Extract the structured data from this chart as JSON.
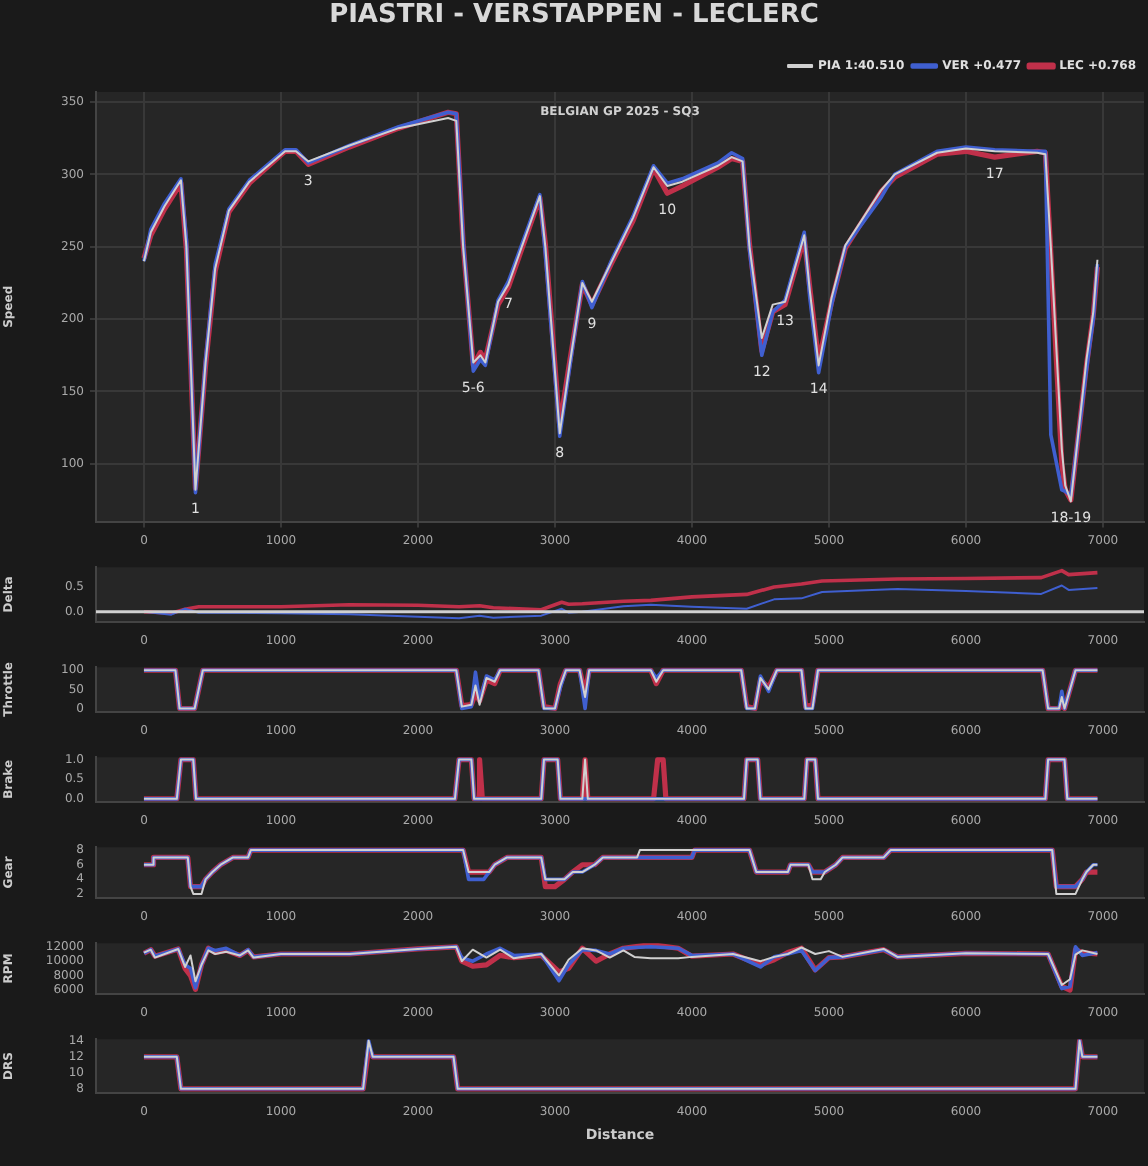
{
  "chart_data": [
    {
      "type": "line",
      "title": "PIASTRI - VERSTAPPEN - LECLERC",
      "subtitle": "BELGIAN GP 2025 - SQ3",
      "ylabel": "Speed",
      "legend": "top right",
      "grid": true,
      "xlim": [
        -350,
        7300
      ],
      "xticks": [
        0,
        1000,
        2000,
        3000,
        4000,
        5000,
        6000,
        7000
      ],
      "ylim": [
        60,
        357
      ],
      "yticks": [
        100,
        150,
        200,
        250,
        300,
        350
      ],
      "x": [
        0,
        50,
        150,
        270,
        310,
        376,
        450,
        520,
        620,
        770,
        1030,
        1110,
        1200,
        1500,
        1860,
        2220,
        2280,
        2330,
        2404,
        2456,
        2492,
        2585,
        2660,
        2890,
        2930,
        3035,
        3110,
        3200,
        3270,
        3410,
        3570,
        3720,
        3820,
        3930,
        4190,
        4290,
        4370,
        4420,
        4510,
        4590,
        4680,
        4820,
        4860,
        4925,
        5020,
        5120,
        5380,
        5480,
        5790,
        6000,
        6210,
        6520,
        6580,
        6620,
        6700,
        6725,
        6766,
        6880,
        6930,
        6960
      ],
      "series": [
        {
          "name": "PIA 1:40.510",
          "color": "#d0d0d0",
          "values": [
            240,
            260,
            278,
            296,
            250,
            82,
            170,
            235,
            275,
            295,
            316,
            316,
            309,
            320,
            332,
            339,
            337,
            250,
            170,
            175,
            170,
            212,
            224,
            285,
            250,
            121,
            170,
            225,
            212,
            239,
            270,
            305,
            292,
            295,
            306,
            312,
            309,
            250,
            187,
            210,
            212,
            258,
            220,
            168,
            215,
            251,
            289,
            300,
            315,
            318,
            316,
            315,
            314,
            250,
            110,
            85,
            74,
            172,
            205,
            241
          ]
        },
        {
          "name": "VER +0.477",
          "color": "#3f5fd0",
          "values": [
            240,
            262,
            280,
            297,
            255,
            80,
            172,
            238,
            276,
            296,
            317,
            317,
            308,
            320,
            333,
            343,
            342,
            255,
            164,
            172,
            168,
            213,
            226,
            286,
            245,
            119,
            168,
            226,
            208,
            240,
            271,
            306,
            294,
            297,
            308,
            315,
            311,
            248,
            175,
            205,
            213,
            260,
            215,
            163,
            210,
            250,
            284,
            300,
            316,
            319,
            317,
            316,
            316,
            120,
            82,
            81,
            78,
            165,
            200,
            238
          ]
        },
        {
          "name": "LEC +0.768",
          "color": "#c0304a",
          "values": [
            242,
            258,
            276,
            294,
            248,
            83,
            168,
            233,
            274,
            294,
            316,
            316,
            307,
            319,
            332,
            343,
            342,
            252,
            168,
            177,
            172,
            210,
            222,
            284,
            252,
            126,
            172,
            224,
            210,
            238,
            268,
            304,
            287,
            292,
            305,
            311,
            309,
            252,
            178,
            205,
            210,
            256,
            222,
            171,
            212,
            249,
            288,
            298,
            314,
            316,
            312,
            316,
            315,
            245,
            100,
            82,
            75,
            168,
            203,
            236
          ]
        }
      ],
      "annotations": [
        {
          "text": "1",
          "x": 376,
          "y": 80
        },
        {
          "text": "3",
          "x": 1200,
          "y": 307
        },
        {
          "text": "5-6",
          "x": 2404,
          "y": 164
        },
        {
          "text": "7",
          "x": 2660,
          "y": 222
        },
        {
          "text": "8",
          "x": 3035,
          "y": 119
        },
        {
          "text": "9",
          "x": 3270,
          "y": 208
        },
        {
          "text": "10",
          "x": 3820,
          "y": 287
        },
        {
          "text": "12",
          "x": 4510,
          "y": 175
        },
        {
          "text": "13",
          "x": 4680,
          "y": 210
        },
        {
          "text": "14",
          "x": 4925,
          "y": 163
        },
        {
          "text": "17",
          "x": 6210,
          "y": 312
        },
        {
          "text": "18-19",
          "x": 6766,
          "y": 74
        }
      ]
    },
    {
      "type": "line",
      "ylabel": "Delta",
      "xlim": [
        -350,
        7300
      ],
      "xticks": [
        0,
        1000,
        2000,
        3000,
        4000,
        5000,
        6000,
        7000
      ],
      "ylim": [
        -0.2,
        0.9
      ],
      "yticks": [
        {
          "value": 0,
          "label": "0.0"
        },
        {
          "value": 0.5,
          "label": "0.5"
        }
      ],
      "ref_lines": [
        {
          "axis": "y",
          "value": 0,
          "color": "#d0d0d0"
        }
      ],
      "x": [
        0,
        200,
        300,
        400,
        1000,
        1500,
        2000,
        2300,
        2450,
        2550,
        2900,
        3050,
        3100,
        3200,
        3500,
        3700,
        4000,
        4400,
        4600,
        4800,
        4950,
        5500,
        6000,
        6550,
        6700,
        6750,
        6960
      ],
      "series": [
        {
          "color": "#3f5fd0",
          "values": [
            0,
            -0.06,
            0.06,
            -0.02,
            -0.03,
            -0.05,
            -0.1,
            -0.13,
            -0.08,
            -0.12,
            -0.08,
            0.06,
            -0.02,
            0.0,
            0.11,
            0.14,
            0.1,
            0.06,
            0.25,
            0.27,
            0.4,
            0.46,
            0.42,
            0.36,
            0.53,
            0.44,
            0.48
          ]
        },
        {
          "color": "#c0304a",
          "values": [
            0,
            -0.03,
            0.05,
            0.1,
            0.1,
            0.14,
            0.13,
            0.1,
            0.12,
            0.08,
            0.04,
            0.19,
            0.15,
            0.16,
            0.21,
            0.23,
            0.3,
            0.35,
            0.5,
            0.56,
            0.62,
            0.66,
            0.67,
            0.69,
            0.83,
            0.75,
            0.79
          ]
        }
      ]
    },
    {
      "type": "line",
      "ylabel": "Throttle",
      "xlim": [
        -350,
        7300
      ],
      "xticks": [
        0,
        1000,
        2000,
        3000,
        4000,
        5000,
        6000,
        7000
      ],
      "ylim": [
        -8,
        108
      ],
      "yticks": [
        0,
        50,
        100
      ],
      "x": [
        0,
        230,
        260,
        370,
        430,
        2280,
        2320,
        2390,
        2420,
        2450,
        2500,
        2560,
        2600,
        2880,
        2920,
        3000,
        3040,
        3080,
        3180,
        3220,
        3250,
        3700,
        3740,
        3790,
        4360,
        4400,
        4460,
        4500,
        4560,
        4620,
        4800,
        4830,
        4880,
        4920,
        6560,
        6600,
        6680,
        6700,
        6720,
        6800,
        6960
      ],
      "series": [
        {
          "color": "#d0d0d0",
          "values": [
            100,
            100,
            0,
            0,
            100,
            100,
            5,
            10,
            60,
            10,
            80,
            70,
            100,
            100,
            0,
            0,
            60,
            100,
            100,
            30,
            100,
            100,
            70,
            100,
            100,
            0,
            0,
            80,
            50,
            100,
            100,
            0,
            0,
            100,
            100,
            0,
            0,
            30,
            0,
            100,
            100
          ]
        },
        {
          "color": "#3f5fd0",
          "values": [
            100,
            100,
            0,
            0,
            100,
            100,
            0,
            5,
            95,
            20,
            85,
            75,
            100,
            100,
            0,
            0,
            55,
            100,
            100,
            0,
            100,
            100,
            80,
            100,
            100,
            0,
            0,
            85,
            45,
            100,
            100,
            0,
            0,
            100,
            100,
            0,
            0,
            45,
            0,
            100,
            100
          ]
        },
        {
          "color": "#c0304a",
          "values": [
            100,
            100,
            0,
            0,
            100,
            100,
            8,
            10,
            40,
            20,
            75,
            65,
            100,
            100,
            5,
            0,
            65,
            100,
            100,
            40,
            100,
            100,
            65,
            100,
            100,
            5,
            0,
            75,
            55,
            100,
            100,
            5,
            10,
            100,
            100,
            0,
            0,
            10,
            0,
            100,
            100
          ]
        }
      ]
    },
    {
      "type": "line",
      "ylabel": "Brake",
      "xlim": [
        -350,
        7300
      ],
      "xticks": [
        0,
        1000,
        2000,
        3000,
        4000,
        5000,
        6000,
        7000
      ],
      "ylim": [
        -0.07,
        1.06
      ],
      "yticks": [
        {
          "value": 0,
          "label": "0.0"
        },
        {
          "value": 0.5,
          "label": "0.5"
        },
        {
          "value": 1,
          "label": "1.0"
        }
      ],
      "x": [
        0,
        240,
        270,
        360,
        380,
        2270,
        2300,
        2390,
        2410,
        2440,
        2450,
        2470,
        2900,
        2920,
        3020,
        3040,
        3200,
        3220,
        3240,
        3720,
        3750,
        3790,
        3810,
        4380,
        4400,
        4480,
        4500,
        4820,
        4840,
        4900,
        4920,
        6580,
        6600,
        6720,
        6740,
        6960
      ],
      "series": [
        {
          "color": "#d0d0d0",
          "values": [
            0,
            0,
            1,
            1,
            0,
            0,
            1,
            1,
            0,
            0,
            0,
            0,
            0,
            1,
            1,
            0,
            0,
            1,
            0,
            0,
            0,
            0,
            0,
            0,
            1,
            1,
            0,
            0,
            1,
            1,
            0,
            0,
            1,
            1,
            0,
            0
          ]
        },
        {
          "color": "#3f5fd0",
          "values": [
            0,
            0,
            1,
            1,
            0,
            0,
            1,
            1,
            0,
            0,
            0,
            0,
            0,
            1,
            1,
            0,
            0,
            0,
            0,
            0,
            0,
            0,
            0,
            0,
            1,
            1,
            0,
            0,
            1,
            1,
            0,
            0,
            1,
            1,
            0,
            0
          ]
        },
        {
          "color": "#c0304a",
          "values": [
            0,
            0,
            1,
            1,
            0,
            0,
            1,
            1,
            0,
            0,
            1,
            0,
            0,
            1,
            1,
            0,
            0,
            1,
            0,
            0,
            1,
            1,
            0,
            0,
            1,
            1,
            0,
            0,
            1,
            1,
            0,
            0,
            1,
            1,
            0,
            0
          ]
        }
      ]
    },
    {
      "type": "line",
      "ylabel": "Gear",
      "xlim": [
        -350,
        7300
      ],
      "xticks": [
        0,
        1000,
        2000,
        3000,
        4000,
        5000,
        6000,
        7000
      ],
      "ylim": [
        1.5,
        8.4
      ],
      "yticks": [
        2,
        4,
        6,
        8
      ],
      "x": [
        0,
        60,
        70,
        320,
        340,
        360,
        420,
        450,
        500,
        560,
        650,
        760,
        780,
        2330,
        2370,
        2420,
        2480,
        2520,
        2560,
        2650,
        2700,
        2900,
        2930,
        3000,
        3070,
        3130,
        3200,
        3290,
        3350,
        3600,
        3620,
        4000,
        4020,
        4420,
        4470,
        4700,
        4720,
        4850,
        4880,
        4940,
        4970,
        5050,
        5100,
        5400,
        5450,
        6630,
        6660,
        6720,
        6800,
        6850,
        6880,
        6930,
        6960
      ],
      "series": [
        {
          "color": "#d0d0d0",
          "values": [
            6,
            6,
            7,
            7,
            3,
            2,
            2,
            4,
            5,
            6,
            7,
            7,
            8,
            8,
            5,
            5,
            5,
            5,
            6,
            7,
            7,
            7,
            4,
            4,
            4,
            5,
            5,
            6,
            7,
            7,
            8,
            8,
            8,
            8,
            5,
            5,
            6,
            6,
            4,
            4,
            5,
            6,
            7,
            7,
            8,
            8,
            2,
            2,
            2,
            4,
            5,
            6,
            6
          ]
        },
        {
          "color": "#3f5fd0",
          "values": [
            6,
            6,
            7,
            7,
            3,
            3,
            3,
            4,
            5,
            6,
            7,
            7,
            8,
            8,
            4,
            4,
            4,
            5,
            6,
            7,
            7,
            7,
            4,
            4,
            4,
            5,
            5,
            6,
            7,
            7,
            7,
            7,
            8,
            8,
            5,
            5,
            6,
            6,
            5,
            5,
            5,
            6,
            7,
            7,
            8,
            8,
            3,
            3,
            3,
            4,
            5,
            6,
            6
          ]
        },
        {
          "color": "#c0304a",
          "values": [
            6,
            6,
            7,
            7,
            3,
            3,
            3,
            4,
            5,
            6,
            7,
            7,
            8,
            8,
            5,
            5,
            5,
            5,
            6,
            7,
            7,
            7,
            3,
            3,
            4,
            5,
            6,
            6,
            7,
            7,
            7,
            7,
            8,
            8,
            5,
            5,
            6,
            6,
            5,
            5,
            5,
            6,
            7,
            7,
            8,
            8,
            3,
            3,
            3,
            4,
            5,
            5,
            5
          ]
        }
      ]
    },
    {
      "type": "line",
      "ylabel": "RPM",
      "xlim": [
        -350,
        7300
      ],
      "xticks": [
        0,
        1000,
        2000,
        3000,
        4000,
        5000,
        6000,
        7000
      ],
      "ylim": [
        5500,
        12500
      ],
      "yticks": [
        6000,
        8000,
        10000,
        12000
      ],
      "x": [
        0,
        50,
        80,
        250,
        300,
        340,
        376,
        420,
        470,
        520,
        600,
        700,
        760,
        800,
        1000,
        1500,
        2000,
        2280,
        2320,
        2400,
        2500,
        2600,
        2700,
        2900,
        3030,
        3100,
        3200,
        3300,
        3400,
        3500,
        3580,
        3700,
        3900,
        4000,
        4300,
        4500,
        4600,
        4700,
        4800,
        4900,
        5000,
        5100,
        5400,
        5500,
        6000,
        6600,
        6700,
        6760,
        6800,
        6850,
        6960
      ],
      "series": [
        {
          "color": "#d0d0d0",
          "values": [
            11200,
            11600,
            10500,
            11700,
            9200,
            10800,
            7200,
            9500,
            11500,
            11000,
            11300,
            10800,
            11500,
            10500,
            11000,
            11000,
            11700,
            12000,
            10000,
            11600,
            10500,
            11600,
            10400,
            11000,
            8000,
            10200,
            11800,
            11500,
            10500,
            11500,
            10600,
            10400,
            10400,
            10600,
            11000,
            10000,
            10600,
            11000,
            11900,
            11000,
            11400,
            10600,
            11700,
            10600,
            11100,
            11000,
            6700,
            7500,
            10900,
            11500,
            11000
          ]
        },
        {
          "color": "#3f5fd0",
          "values": [
            11100,
            11600,
            10700,
            11700,
            9500,
            9000,
            6300,
            9500,
            11800,
            11500,
            11800,
            10800,
            11600,
            10600,
            11000,
            11000,
            11700,
            12000,
            10500,
            10000,
            11000,
            11800,
            10800,
            11000,
            7300,
            9500,
            11600,
            11500,
            11000,
            11800,
            11900,
            12000,
            11800,
            10800,
            11000,
            9200,
            10600,
            11000,
            11500,
            8700,
            10500,
            10600,
            11600,
            10600,
            11100,
            11000,
            6200,
            6500,
            12000,
            10800,
            11200
          ]
        },
        {
          "color": "#c0304a",
          "values": [
            11100,
            11600,
            10700,
            11700,
            9000,
            8000,
            6100,
            9500,
            11800,
            11200,
            11500,
            10800,
            11500,
            10600,
            11000,
            11000,
            11700,
            12000,
            10000,
            9300,
            9500,
            10800,
            10500,
            10800,
            8500,
            9000,
            11800,
            10000,
            11000,
            11800,
            12000,
            12300,
            11800,
            10700,
            11000,
            9500,
            10200,
            11200,
            11800,
            8800,
            10500,
            10600,
            11600,
            10600,
            11100,
            11000,
            6500,
            6000,
            11600,
            11200,
            11000
          ]
        }
      ]
    },
    {
      "type": "line",
      "ylabel": "DRS",
      "xlabel": "Distance",
      "xlim": [
        -350,
        7300
      ],
      "xticks": [
        0,
        1000,
        2000,
        3000,
        4000,
        5000,
        6000,
        7000
      ],
      "ylim": [
        7.5,
        14.2
      ],
      "yticks": [
        8,
        10,
        12,
        14
      ],
      "x": [
        0,
        240,
        270,
        1600,
        1640,
        1670,
        2260,
        2290,
        6800,
        6830,
        6850,
        6960
      ],
      "series": [
        {
          "color": "#d0d0d0",
          "values": [
            12,
            12,
            8,
            8,
            14,
            12,
            12,
            8,
            8,
            14,
            12,
            12
          ]
        },
        {
          "color": "#3f5fd0",
          "values": [
            12,
            12,
            8,
            8,
            14,
            12,
            12,
            8,
            8,
            14,
            12,
            12
          ]
        },
        {
          "color": "#c0304a",
          "values": [
            12,
            12,
            8,
            8,
            13,
            12,
            12,
            8,
            8,
            14,
            12,
            12
          ]
        }
      ]
    }
  ]
}
